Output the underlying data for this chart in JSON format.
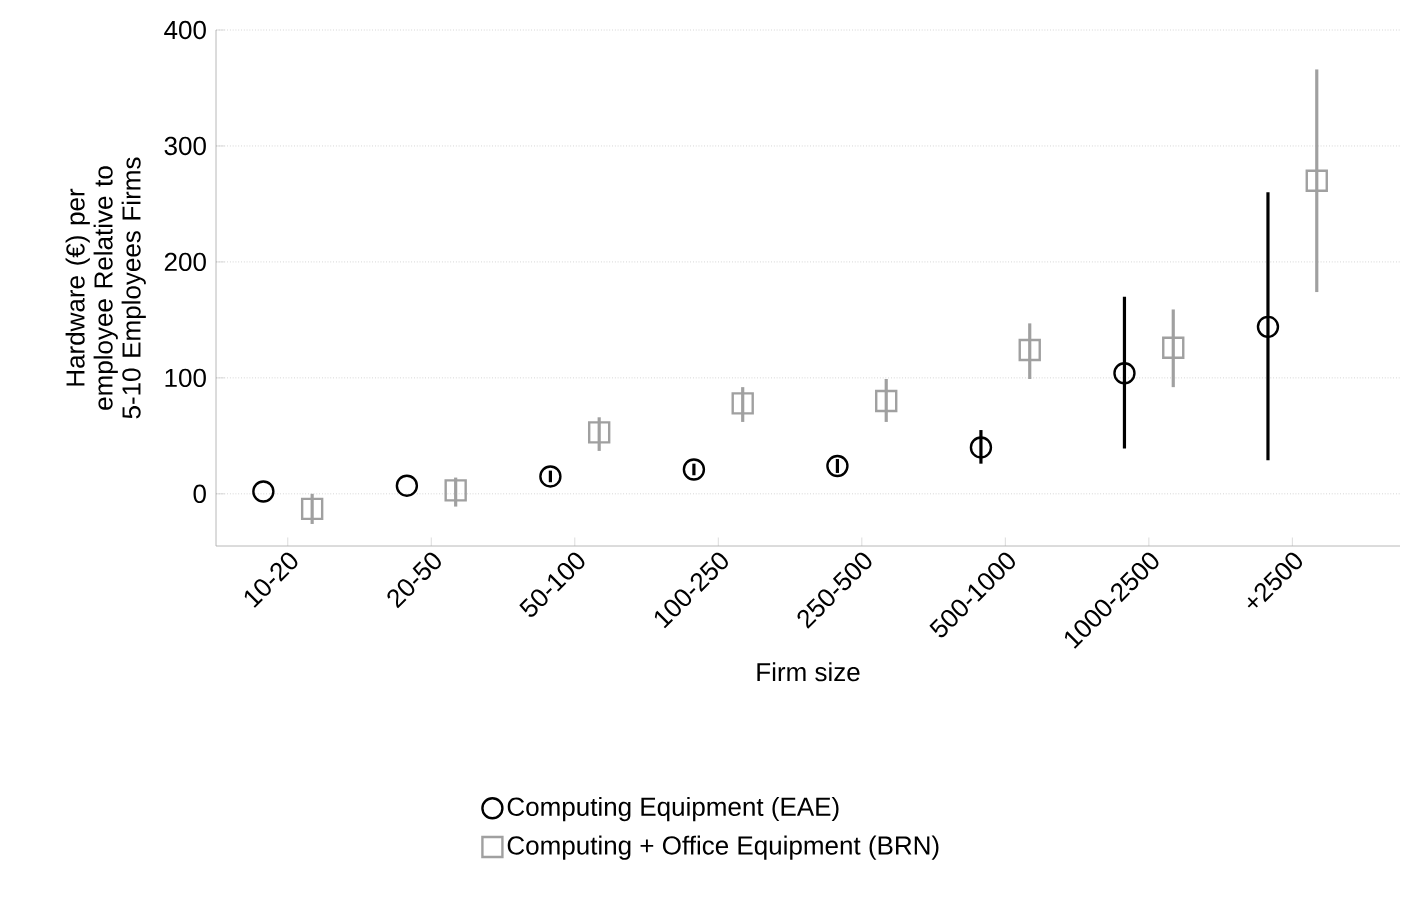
{
  "chart_data": {
    "type": "scatter",
    "xlabel": "Firm size",
    "ylabel": "Hardware (€) per employee Relative to 5-10  Employees Firms",
    "categories": [
      "10-20",
      "20-50",
      "50-100",
      "100-250",
      "250-500",
      "500-1000",
      "1000-2500",
      "+2500"
    ],
    "ylim": [
      -45,
      400
    ],
    "yticks": [
      0,
      100,
      200,
      300,
      400
    ],
    "grid": "y",
    "legend": "bottom",
    "series": [
      {
        "name": "Computing Equipment (EAE)",
        "color": "#000000",
        "marker": "circle",
        "values": [
          2,
          7,
          15,
          21,
          24,
          40,
          104,
          144
        ],
        "errors": [
          null,
          null,
          [
            10,
            20
          ],
          [
            16,
            26
          ],
          [
            18,
            30
          ],
          [
            26,
            55
          ],
          [
            39,
            170
          ],
          [
            29,
            260
          ]
        ]
      },
      {
        "name": "Computing + Office Equipment (BRN)",
        "color": "#a0a0a0",
        "marker": "square",
        "values": [
          -13,
          3,
          53,
          78,
          80,
          124,
          126,
          270
        ],
        "errors": [
          [
            -26,
            0
          ],
          [
            -11,
            14
          ],
          [
            37,
            66
          ],
          [
            62,
            92
          ],
          [
            62,
            99
          ],
          [
            99,
            147
          ],
          [
            92,
            159
          ],
          [
            174,
            366
          ]
        ]
      }
    ]
  }
}
